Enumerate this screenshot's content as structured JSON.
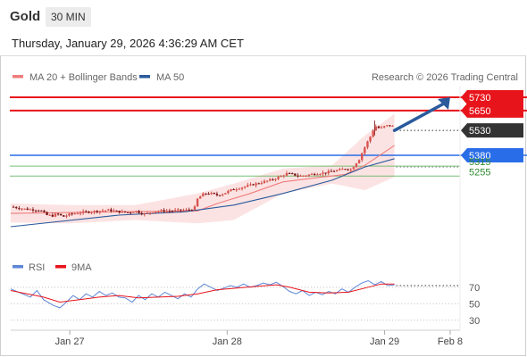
{
  "header": {
    "symbol": "Gold",
    "timeframe": "30 MIN",
    "datetime": "Thursday, January 29, 2026 4:36:29 AM CET"
  },
  "colors": {
    "resistance": "#e8141b",
    "support": "#2a6de8",
    "target": "#55b055",
    "last": "#333333",
    "ma20": "#f07c7c",
    "ma50": "#2a5a9c",
    "bollinger": "#fbdada",
    "arrow": "#2a5a9c",
    "rsi": "#5d86d6",
    "rsi_ma": "#e8141b"
  },
  "chart_data": [
    {
      "type": "candlestick",
      "legend": [
        {
          "name": "MA 20 + Bollinger Bands",
          "color": "#f07c7c"
        },
        {
          "name": "MA 50",
          "color": "#2a5a9c"
        }
      ],
      "attribution": "Research © 2026 Trading Central",
      "x_ticks": [
        {
          "label": "Jan 27",
          "x": 5
        },
        {
          "label": "Jan 28",
          "x": 53
        },
        {
          "label": "Jan 29",
          "x": 101
        },
        {
          "label": "Feb 8",
          "x": 121
        }
      ],
      "x_range": [
        -13,
        124
      ],
      "y_range": [
        4810,
        5800
      ],
      "levels": [
        {
          "label": "5730",
          "value": 5730,
          "kind": "resistance"
        },
        {
          "label": "5650",
          "value": 5650,
          "kind": "resistance"
        },
        {
          "label": "5530",
          "value": 5530,
          "kind": "last"
        },
        {
          "label": "5380",
          "value": 5380,
          "kind": "support"
        },
        {
          "label": "5315",
          "value": 5315,
          "kind": "target"
        },
        {
          "label": "5255",
          "value": 5255,
          "kind": "target"
        }
      ],
      "close_path": [
        [
          -13,
          5070
        ],
        [
          -8,
          5055
        ],
        [
          -4,
          5050
        ],
        [
          -2,
          5020
        ],
        [
          0,
          5015
        ],
        [
          1,
          5030
        ],
        [
          3,
          5010
        ],
        [
          5,
          5025
        ],
        [
          8,
          5035
        ],
        [
          11,
          5040
        ],
        [
          14,
          5045
        ],
        [
          17,
          5050
        ],
        [
          20,
          5040
        ],
        [
          23,
          5035
        ],
        [
          25,
          5045
        ],
        [
          27,
          5030
        ],
        [
          28,
          5025
        ],
        [
          30,
          5040
        ],
        [
          33,
          5045
        ],
        [
          36,
          5045
        ],
        [
          39,
          5050
        ],
        [
          41,
          5050
        ],
        [
          43,
          5060
        ],
        [
          44,
          5120
        ],
        [
          46,
          5150
        ],
        [
          48,
          5150
        ],
        [
          50,
          5140
        ],
        [
          52,
          5150
        ],
        [
          54,
          5170
        ],
        [
          57,
          5185
        ],
        [
          60,
          5200
        ],
        [
          63,
          5215
        ],
        [
          66,
          5230
        ],
        [
          69,
          5250
        ],
        [
          71,
          5270
        ],
        [
          73,
          5265
        ],
        [
          75,
          5255
        ],
        [
          77,
          5260
        ],
        [
          80,
          5270
        ],
        [
          83,
          5275
        ],
        [
          85,
          5285
        ],
        [
          87,
          5290
        ],
        [
          89,
          5300
        ],
        [
          91,
          5295
        ],
        [
          92,
          5330
        ],
        [
          93,
          5345
        ],
        [
          94,
          5390
        ],
        [
          95,
          5430
        ],
        [
          96,
          5470
        ],
        [
          97,
          5505
        ],
        [
          98,
          5560
        ],
        [
          99,
          5545
        ],
        [
          100,
          5545
        ],
        [
          101,
          5555
        ],
        [
          102,
          5560
        ],
        [
          103,
          5560
        ],
        [
          104,
          5550
        ]
      ],
      "ma50": [
        [
          -13,
          4950
        ],
        [
          20,
          5020
        ],
        [
          40,
          5040
        ],
        [
          55,
          5080
        ],
        [
          70,
          5150
        ],
        [
          85,
          5230
        ],
        [
          95,
          5310
        ],
        [
          104,
          5360
        ]
      ],
      "ma20": [
        [
          -13,
          5030
        ],
        [
          20,
          5040
        ],
        [
          44,
          5045
        ],
        [
          50,
          5090
        ],
        [
          60,
          5150
        ],
        [
          70,
          5220
        ],
        [
          80,
          5245
        ],
        [
          89,
          5265
        ],
        [
          95,
          5320
        ],
        [
          104,
          5440
        ]
      ],
      "bollinger": {
        "upper": [
          [
            -13,
            5090
          ],
          [
            5,
            5080
          ],
          [
            25,
            5080
          ],
          [
            44,
            5150
          ],
          [
            55,
            5210
          ],
          [
            70,
            5300
          ],
          [
            85,
            5320
          ],
          [
            95,
            5500
          ],
          [
            104,
            5630
          ]
        ],
        "lower": [
          [
            104,
            5250
          ],
          [
            95,
            5170
          ],
          [
            85,
            5210
          ],
          [
            70,
            5150
          ],
          [
            55,
            4990
          ],
          [
            44,
            4970
          ],
          [
            25,
            4990
          ],
          [
            5,
            4970
          ],
          [
            -13,
            4975
          ]
        ]
      },
      "forecast_arrow": {
        "from": [
          104,
          5530
        ],
        "to": [
          121,
          5730
        ]
      }
    },
    {
      "type": "line",
      "legend": [
        {
          "name": "RSI",
          "color": "#5d86d6"
        },
        {
          "name": "9MA",
          "color": "#e8141b"
        }
      ],
      "y_ticks": [
        70,
        50,
        30
      ],
      "y_range": [
        20,
        85
      ],
      "x_range": [
        -13,
        124
      ],
      "rsi": [
        [
          -13,
          68
        ],
        [
          -10,
          63
        ],
        [
          -7,
          58
        ],
        [
          -5,
          66
        ],
        [
          -3,
          55
        ],
        [
          0,
          48
        ],
        [
          2,
          45
        ],
        [
          4,
          52
        ],
        [
          6,
          60
        ],
        [
          8,
          55
        ],
        [
          10,
          62
        ],
        [
          12,
          58
        ],
        [
          14,
          65
        ],
        [
          16,
          60
        ],
        [
          18,
          63
        ],
        [
          20,
          58
        ],
        [
          22,
          57
        ],
        [
          24,
          52
        ],
        [
          26,
          60
        ],
        [
          28,
          55
        ],
        [
          30,
          62
        ],
        [
          32,
          58
        ],
        [
          34,
          64
        ],
        [
          36,
          60
        ],
        [
          38,
          56
        ],
        [
          40,
          62
        ],
        [
          42,
          58
        ],
        [
          44,
          68
        ],
        [
          46,
          74
        ],
        [
          48,
          70
        ],
        [
          50,
          66
        ],
        [
          52,
          69
        ],
        [
          54,
          72
        ],
        [
          56,
          70
        ],
        [
          58,
          74
        ],
        [
          60,
          70
        ],
        [
          62,
          72
        ],
        [
          64,
          75
        ],
        [
          66,
          73
        ],
        [
          68,
          76
        ],
        [
          70,
          71
        ],
        [
          72,
          65
        ],
        [
          74,
          62
        ],
        [
          76,
          66
        ],
        [
          78,
          60
        ],
        [
          80,
          64
        ],
        [
          82,
          61
        ],
        [
          84,
          65
        ],
        [
          86,
          62
        ],
        [
          88,
          68
        ],
        [
          90,
          64
        ],
        [
          92,
          70
        ],
        [
          94,
          75
        ],
        [
          96,
          78
        ],
        [
          98,
          73
        ],
        [
          100,
          77
        ],
        [
          102,
          72
        ],
        [
          104,
          73
        ]
      ],
      "rsi_ma": [
        [
          -13,
          66
        ],
        [
          -8,
          62
        ],
        [
          -3,
          58
        ],
        [
          2,
          52
        ],
        [
          8,
          55
        ],
        [
          14,
          58
        ],
        [
          20,
          60
        ],
        [
          26,
          57
        ],
        [
          32,
          58
        ],
        [
          38,
          59
        ],
        [
          44,
          62
        ],
        [
          50,
          67
        ],
        [
          56,
          69
        ],
        [
          62,
          71
        ],
        [
          68,
          73
        ],
        [
          72,
          70
        ],
        [
          78,
          64
        ],
        [
          84,
          63
        ],
        [
          90,
          64
        ],
        [
          96,
          70
        ],
        [
          100,
          74
        ],
        [
          104,
          74
        ]
      ]
    }
  ]
}
